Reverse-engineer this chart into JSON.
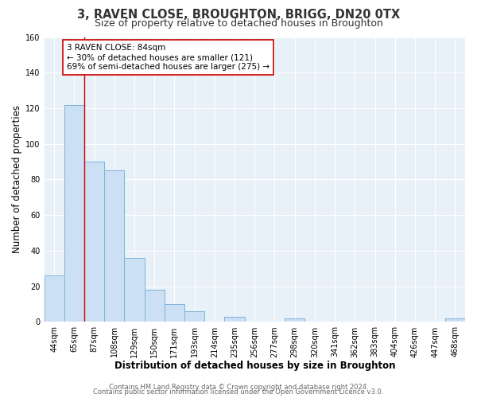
{
  "title": "3, RAVEN CLOSE, BROUGHTON, BRIGG, DN20 0TX",
  "subtitle": "Size of property relative to detached houses in Broughton",
  "xlabel": "Distribution of detached houses by size in Broughton",
  "ylabel": "Number of detached properties",
  "bar_labels": [
    "44sqm",
    "65sqm",
    "87sqm",
    "108sqm",
    "129sqm",
    "150sqm",
    "171sqm",
    "193sqm",
    "214sqm",
    "235sqm",
    "256sqm",
    "277sqm",
    "298sqm",
    "320sqm",
    "341sqm",
    "362sqm",
    "383sqm",
    "404sqm",
    "426sqm",
    "447sqm",
    "468sqm"
  ],
  "bar_values": [
    26,
    122,
    90,
    85,
    36,
    18,
    10,
    6,
    0,
    3,
    0,
    0,
    2,
    0,
    0,
    0,
    0,
    0,
    0,
    0,
    2
  ],
  "bar_color": "#cce0f5",
  "bar_edge_color": "#7fb3d9",
  "ylim": [
    0,
    160
  ],
  "yticks": [
    0,
    20,
    40,
    60,
    80,
    100,
    120,
    140,
    160
  ],
  "vline_x": 1.5,
  "vline_color": "#cc0000",
  "annotation_title": "3 RAVEN CLOSE: 84sqm",
  "annotation_line1": "← 30% of detached houses are smaller (121)",
  "annotation_line2": "69% of semi-detached houses are larger (275) →",
  "footer1": "Contains HM Land Registry data © Crown copyright and database right 2024.",
  "footer2": "Contains public sector information licensed under the Open Government Licence v3.0.",
  "bg_color": "#ffffff",
  "plot_bg_color": "#e8f0f8",
  "title_fontsize": 10.5,
  "subtitle_fontsize": 9,
  "axis_label_fontsize": 8.5,
  "tick_fontsize": 7,
  "footer_fontsize": 6,
  "annotation_fontsize": 7.5
}
